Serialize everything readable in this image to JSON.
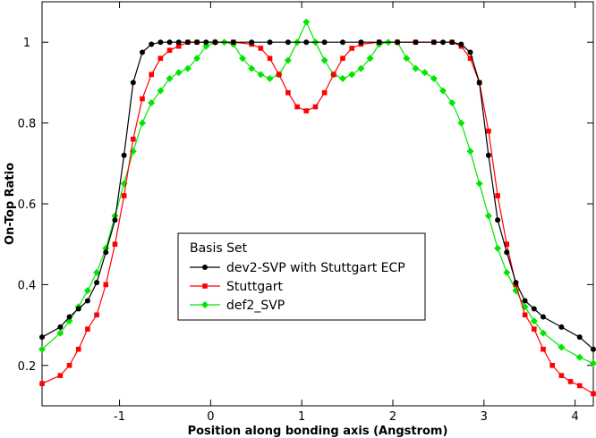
{
  "chart_data": {
    "type": "line",
    "xlabel": "Position along bonding axis (Angstrom)",
    "ylabel": "On-Top Ratio",
    "xlim": [
      -1.85,
      4.2
    ],
    "ylim": [
      0.1,
      1.1
    ],
    "xticks": [
      -1,
      0,
      1,
      2,
      3,
      4
    ],
    "yticks": [
      0.2,
      0.4,
      0.6,
      0.8,
      1
    ],
    "grid": false,
    "legend": {
      "title": "Basis Set",
      "placement": "center-bottom"
    },
    "series": [
      {
        "name": "dev2-SVP with Stuttgart ECP",
        "color": "#000000",
        "marker": "circle",
        "x": [
          -1.85,
          -1.65,
          -1.55,
          -1.45,
          -1.35,
          -1.25,
          -1.15,
          -1.05,
          -0.95,
          -0.85,
          -0.75,
          -0.65,
          -0.55,
          -0.45,
          -0.35,
          -0.25,
          -0.15,
          -0.05,
          0.05,
          0.25,
          0.45,
          0.65,
          0.85,
          1.05,
          1.25,
          1.45,
          1.65,
          1.85,
          2.05,
          2.25,
          2.45,
          2.55,
          2.65,
          2.75,
          2.85,
          2.95,
          3.05,
          3.15,
          3.25,
          3.35,
          3.45,
          3.55,
          3.65,
          3.85,
          4.05,
          4.2
        ],
        "y": [
          0.27,
          0.295,
          0.32,
          0.34,
          0.36,
          0.405,
          0.48,
          0.56,
          0.72,
          0.9,
          0.975,
          0.995,
          1.0,
          1.0,
          1.0,
          1.0,
          1.0,
          1.0,
          1.0,
          1.0,
          1.0,
          1.0,
          1.0,
          1.0,
          1.0,
          1.0,
          1.0,
          1.0,
          1.0,
          1.0,
          1.0,
          1.0,
          1.0,
          0.995,
          0.975,
          0.9,
          0.72,
          0.56,
          0.48,
          0.405,
          0.36,
          0.34,
          0.32,
          0.295,
          0.27,
          0.24
        ]
      },
      {
        "name": "Stuttgart",
        "color": "#ff0000",
        "marker": "square",
        "x": [
          -1.85,
          -1.65,
          -1.55,
          -1.45,
          -1.35,
          -1.25,
          -1.15,
          -1.05,
          -0.95,
          -0.85,
          -0.75,
          -0.65,
          -0.55,
          -0.45,
          -0.35,
          -0.25,
          -0.15,
          0.05,
          0.25,
          0.45,
          0.55,
          0.65,
          0.75,
          0.85,
          0.95,
          1.05,
          1.15,
          1.25,
          1.35,
          1.45,
          1.55,
          1.65,
          1.85,
          2.05,
          2.25,
          2.45,
          2.65,
          2.75,
          2.85,
          2.95,
          3.05,
          3.15,
          3.25,
          3.35,
          3.45,
          3.55,
          3.65,
          3.75,
          3.85,
          3.95,
          4.05,
          4.2
        ],
        "y": [
          0.155,
          0.175,
          0.2,
          0.24,
          0.29,
          0.325,
          0.4,
          0.5,
          0.62,
          0.76,
          0.86,
          0.92,
          0.96,
          0.98,
          0.99,
          1.0,
          1.0,
          1.0,
          1.0,
          0.995,
          0.985,
          0.96,
          0.92,
          0.875,
          0.84,
          0.83,
          0.84,
          0.875,
          0.92,
          0.96,
          0.985,
          0.995,
          1.0,
          1.0,
          1.0,
          1.0,
          1.0,
          0.99,
          0.96,
          0.9,
          0.78,
          0.62,
          0.5,
          0.4,
          0.325,
          0.29,
          0.24,
          0.2,
          0.175,
          0.16,
          0.15,
          0.13
        ]
      },
      {
        "name": "def2_SVP",
        "color": "#00e600",
        "marker": "diamond",
        "x": [
          -1.85,
          -1.65,
          -1.55,
          -1.45,
          -1.35,
          -1.25,
          -1.15,
          -1.05,
          -0.95,
          -0.85,
          -0.75,
          -0.65,
          -0.55,
          -0.45,
          -0.35,
          -0.25,
          -0.15,
          -0.05,
          0.05,
          0.15,
          0.25,
          0.35,
          0.45,
          0.55,
          0.65,
          0.75,
          0.85,
          0.95,
          1.05,
          1.15,
          1.25,
          1.35,
          1.45,
          1.55,
          1.65,
          1.75,
          1.85,
          1.95,
          2.05,
          2.15,
          2.25,
          2.35,
          2.45,
          2.55,
          2.65,
          2.75,
          2.85,
          2.95,
          3.05,
          3.15,
          3.25,
          3.35,
          3.45,
          3.55,
          3.65,
          3.85,
          4.05,
          4.2
        ],
        "y": [
          0.24,
          0.28,
          0.31,
          0.345,
          0.385,
          0.43,
          0.49,
          0.57,
          0.65,
          0.73,
          0.8,
          0.85,
          0.88,
          0.91,
          0.925,
          0.935,
          0.96,
          0.99,
          1.0,
          1.0,
          0.995,
          0.96,
          0.935,
          0.92,
          0.91,
          0.92,
          0.955,
          1.0,
          1.05,
          1.0,
          0.955,
          0.92,
          0.91,
          0.92,
          0.935,
          0.96,
          0.995,
          1.0,
          1.0,
          0.96,
          0.935,
          0.925,
          0.91,
          0.88,
          0.85,
          0.8,
          0.73,
          0.65,
          0.57,
          0.49,
          0.43,
          0.385,
          0.345,
          0.31,
          0.28,
          0.245,
          0.22,
          0.205
        ]
      }
    ]
  }
}
